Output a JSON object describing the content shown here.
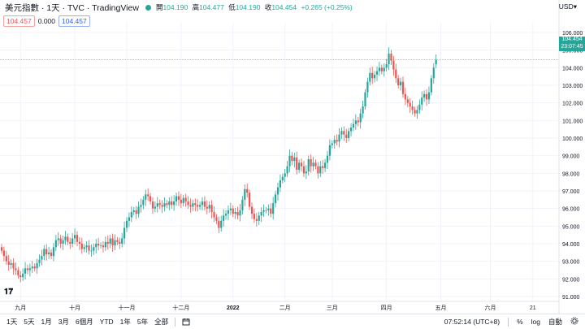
{
  "header": {
    "symbol": "美元指數 · 1天 · TVC · TradingView",
    "open_label": "開",
    "open": "104.190",
    "high_label": "高",
    "high": "104.477",
    "low_label": "低",
    "low": "104.190",
    "close_label": "收",
    "close": "104.454",
    "change": "+0.265 (+0.25%)"
  },
  "chips": {
    "last": "104.457",
    "mid": "0.000",
    "ask": "104.457"
  },
  "currency": "USD▾",
  "price_label": {
    "price": "104.454",
    "countdown": "23:07:45"
  },
  "toolbar": {
    "timeframes": [
      "1天",
      "5天",
      "1月",
      "3月",
      "6個月",
      "YTD",
      "1年",
      "5年",
      "全部"
    ],
    "clock": "07:52:14 (UTC+8)",
    "percent": "%",
    "log": "log",
    "auto": "自動"
  },
  "colors": {
    "up": "#26a69a",
    "down": "#ef5350",
    "grid": "#f0f3fa",
    "axis_text": "#131722"
  },
  "chart_data": {
    "type": "candlestick",
    "ylim": [
      91.0,
      106.0
    ],
    "yticks": [
      91.0,
      92.0,
      93.0,
      94.0,
      95.0,
      96.0,
      97.0,
      98.0,
      99.0,
      100.0,
      101.0,
      102.0,
      103.0,
      104.0,
      105.0,
      106.0
    ],
    "xticks": [
      "九月",
      "十月",
      "十一月",
      "十二月",
      "2022",
      "二月",
      "三月",
      "四月",
      "五月",
      "六月",
      "21"
    ],
    "xtick_index": [
      8,
      31,
      53,
      76,
      98,
      120,
      140,
      163,
      186,
      207,
      225
    ],
    "index_count": 232,
    "last_price": 104.454,
    "closes": [
      93.6,
      93.3,
      93.0,
      92.8,
      92.9,
      92.6,
      92.5,
      92.2,
      92.1,
      92.3,
      92.6,
      92.5,
      92.6,
      92.7,
      92.6,
      92.9,
      93.1,
      93.3,
      93.7,
      93.4,
      93.5,
      93.3,
      93.8,
      94.2,
      94.3,
      94.0,
      94.2,
      94.4,
      94.1,
      94.0,
      94.3,
      94.5,
      94.1,
      94.0,
      93.7,
      93.8,
      93.9,
      93.6,
      93.6,
      93.8,
      94.0,
      93.9,
      93.9,
      93.8,
      94.1,
      94.0,
      94.3,
      93.9,
      94.2,
      94.1,
      94.0,
      94.3,
      94.9,
      95.3,
      95.5,
      95.8,
      95.9,
      95.7,
      96.1,
      96.2,
      96.5,
      96.8,
      96.7,
      96.4,
      96.0,
      96.1,
      96.3,
      96.2,
      96.1,
      96.3,
      96.2,
      96.4,
      96.2,
      96.4,
      96.7,
      96.5,
      96.3,
      96.6,
      96.4,
      96.2,
      96.1,
      96.3,
      96.2,
      96.1,
      96.2,
      96.4,
      96.1,
      96.0,
      96.2,
      95.8,
      95.5,
      95.3,
      94.9,
      95.3,
      95.6,
      95.7,
      95.9,
      96.0,
      95.7,
      95.8,
      95.6,
      95.9,
      96.5,
      97.1,
      96.9,
      96.1,
      95.7,
      95.4,
      95.3,
      95.6,
      95.8,
      95.9,
      95.9,
      96.0,
      95.7,
      96.3,
      96.8,
      97.2,
      97.6,
      97.8,
      98.0,
      98.4,
      99.0,
      98.7,
      98.9,
      98.2,
      98.6,
      98.4,
      98.0,
      98.1,
      98.8,
      98.4,
      98.6,
      98.4,
      98.0,
      98.4,
      98.3,
      98.6,
      99.0,
      99.6,
      99.7,
      99.9,
      99.8,
      100.2,
      100.4,
      100.2,
      100.0,
      100.4,
      100.6,
      100.8,
      101.0,
      100.9,
      101.4,
      101.8,
      102.6,
      103.2,
      103.7,
      103.4,
      103.6,
      103.8,
      104.0,
      103.8,
      104.0,
      104.2,
      104.8,
      104.4,
      103.9,
      103.4,
      103.0,
      103.2,
      102.5,
      102.2,
      102.0,
      101.8,
      101.6,
      101.4,
      101.6,
      101.9,
      102.3,
      102.5,
      102.2,
      102.6,
      103.4,
      104.0,
      104.454
    ],
    "opens": [
      93.8,
      93.6,
      93.3,
      93.0,
      92.8,
      92.9,
      92.6,
      92.5,
      92.2,
      92.1,
      92.3,
      92.6,
      92.5,
      92.6,
      92.7,
      92.6,
      92.9,
      93.1,
      93.3,
      93.7,
      93.4,
      93.5,
      93.3,
      93.8,
      94.2,
      94.3,
      94.0,
      94.2,
      94.4,
      94.1,
      94.0,
      94.3,
      94.5,
      94.1,
      94.0,
      93.7,
      93.8,
      93.9,
      93.6,
      93.6,
      93.8,
      94.0,
      93.9,
      93.9,
      93.8,
      94.1,
      94.0,
      94.3,
      93.9,
      94.2,
      94.1,
      94.0,
      94.3,
      94.9,
      95.3,
      95.5,
      95.8,
      95.9,
      95.7,
      96.1,
      96.2,
      96.5,
      96.8,
      96.7,
      96.4,
      96.0,
      96.1,
      96.3,
      96.2,
      96.1,
      96.3,
      96.2,
      96.4,
      96.2,
      96.4,
      96.7,
      96.5,
      96.3,
      96.6,
      96.4,
      96.2,
      96.1,
      96.3,
      96.2,
      96.1,
      96.2,
      96.4,
      96.1,
      96.0,
      96.2,
      95.8,
      95.5,
      95.3,
      94.9,
      95.3,
      95.6,
      95.7,
      95.9,
      96.0,
      95.7,
      95.8,
      95.6,
      95.9,
      96.5,
      97.1,
      96.9,
      96.1,
      95.7,
      95.4,
      95.3,
      95.6,
      95.8,
      95.9,
      95.9,
      96.0,
      95.7,
      96.3,
      96.8,
      97.2,
      97.6,
      97.8,
      98.0,
      98.4,
      99.0,
      98.7,
      98.9,
      98.2,
      98.6,
      98.4,
      98.0,
      98.1,
      98.8,
      98.4,
      98.6,
      98.4,
      98.0,
      98.4,
      98.3,
      98.6,
      99.0,
      99.6,
      99.7,
      99.9,
      99.8,
      100.2,
      100.4,
      100.2,
      100.0,
      100.4,
      100.6,
      100.8,
      101.0,
      100.9,
      101.4,
      101.8,
      102.6,
      103.2,
      103.7,
      103.4,
      103.6,
      103.8,
      104.0,
      103.8,
      104.0,
      104.2,
      104.8,
      104.4,
      103.9,
      103.4,
      103.0,
      103.2,
      102.5,
      102.2,
      102.0,
      101.8,
      101.6,
      101.4,
      101.6,
      101.9,
      102.3,
      102.5,
      102.2,
      102.6,
      103.4,
      104.19
    ]
  }
}
